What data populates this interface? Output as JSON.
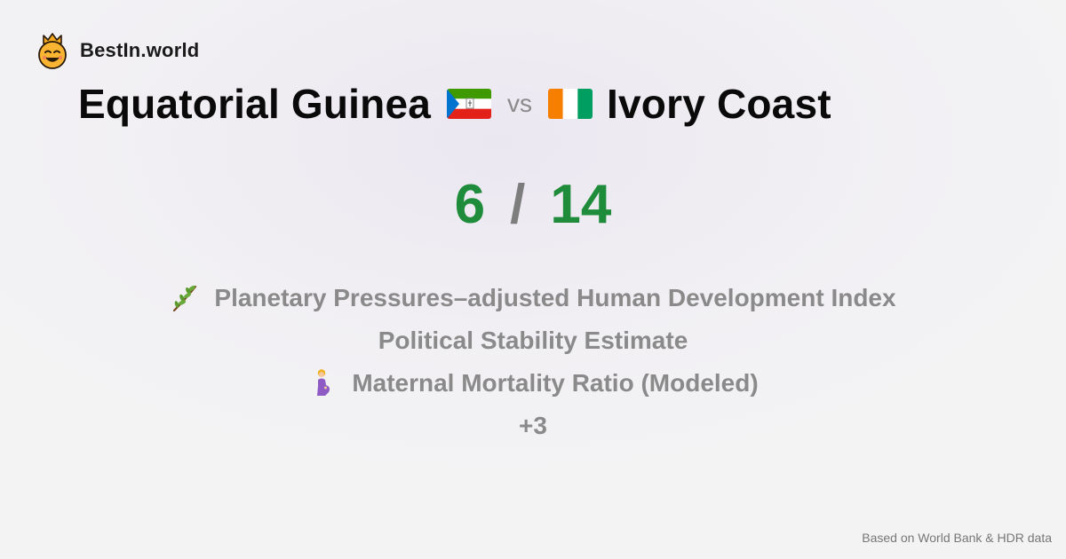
{
  "brand": {
    "name": "BestIn.world",
    "logo_icon": "smiling-crown-face-icon"
  },
  "comparison": {
    "left_country": "Equatorial Guinea",
    "left_flag_icon": "equatorial-guinea-flag-icon",
    "vs_label": "vs",
    "right_country": "Ivory Coast",
    "right_flag_icon": "ivory-coast-flag-icon"
  },
  "score": {
    "left": "6",
    "separator": "/",
    "right": "14"
  },
  "categories": [
    {
      "label": "Planetary Pressures–adjusted Human Development Index",
      "icon": "herb-sprig-icon"
    },
    {
      "label": "Political Stability Estimate",
      "icon": ""
    },
    {
      "label": "Maternal Mortality Ratio (Modeled)",
      "icon": "pregnant-woman-icon"
    },
    {
      "label": "+3",
      "icon": ""
    }
  ],
  "footer": {
    "source": "Based on World Bank & HDR data"
  },
  "colors": {
    "score_green": "#1e8c3a",
    "muted_gray": "#8a8a8a"
  }
}
